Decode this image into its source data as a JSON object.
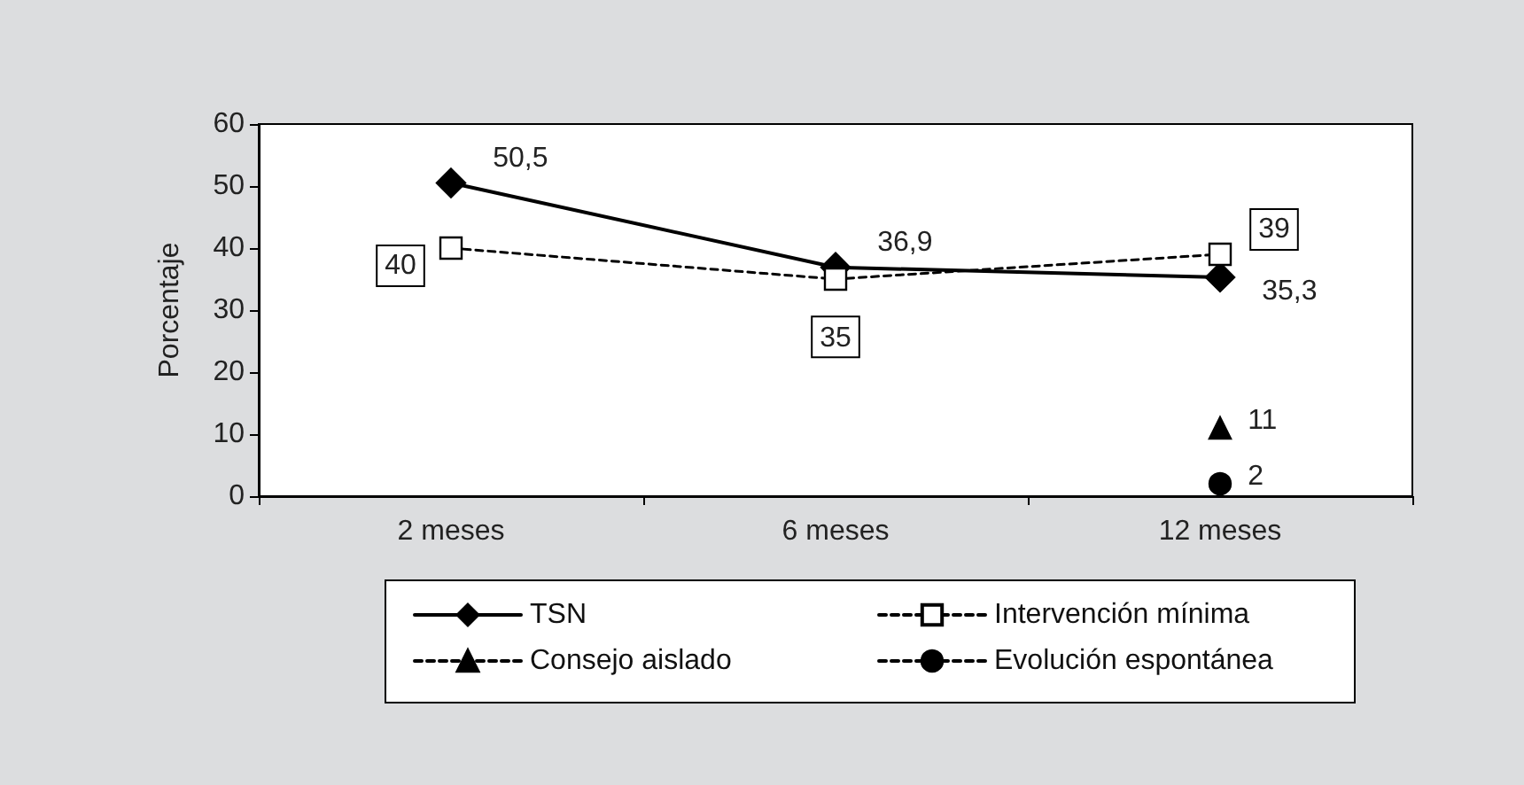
{
  "chart_data": {
    "type": "line",
    "ylabel": "Porcentaje",
    "categories": [
      "2 meses",
      "6 meses",
      "12 meses"
    ],
    "series": [
      {
        "name": "TSN",
        "color": "#000000",
        "values": [
          50.5,
          36.9,
          35.3
        ],
        "value_labels": [
          "50,5",
          "36,9",
          "35,3"
        ],
        "marker": "diamond",
        "line_style": "solid"
      },
      {
        "name": "Intervención mínima",
        "color": "#000000",
        "values": [
          40,
          35,
          39
        ],
        "value_labels": [
          "40",
          "35",
          "39"
        ],
        "marker": "square",
        "line_style": "dashed"
      },
      {
        "name": "Consejo aislado",
        "color": "#000000",
        "values": [
          null,
          null,
          11
        ],
        "value_labels": [
          null,
          null,
          "11"
        ],
        "marker": "triangle",
        "line_style": "dashed"
      },
      {
        "name": "Evolución espontánea",
        "color": "#000000",
        "values": [
          null,
          null,
          2
        ],
        "value_labels": [
          null,
          null,
          "2"
        ],
        "marker": "circle",
        "line_style": "dashed"
      }
    ],
    "ylim": [
      0,
      60
    ],
    "yticks": [
      0,
      10,
      20,
      30,
      40,
      50,
      60
    ],
    "grid": false,
    "legend": "bottom"
  }
}
